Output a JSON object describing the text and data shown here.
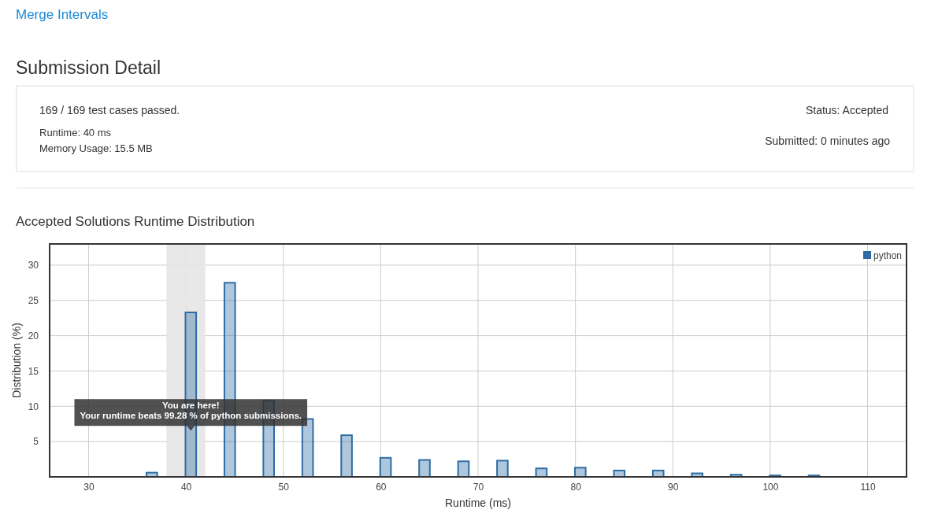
{
  "chart_data": [
    {
      "type": "other",
      "title": "Submission Detail",
      "annotations": [
        "Merge Intervals",
        "169 / 169 test cases passed.",
        "Runtime: 40 ms",
        "Memory Usage: 15.5 MB",
        "Status: Accepted",
        "Submitted: 0 minutes ago"
      ]
    },
    {
      "type": "bar",
      "title": "Accepted Solutions Runtime Distribution",
      "xlabel": "Runtime (ms)",
      "ylabel": "Distribution (%)",
      "x": [
        36.5,
        40.5,
        44.5,
        48.5,
        52.5,
        56.5,
        60.5,
        64.5,
        68.5,
        72.5,
        76.5,
        80.5,
        84.5,
        88.5,
        92.5,
        96.5,
        100.5,
        104.5
      ],
      "series": [
        {
          "name": "python",
          "color": "#2e6da4",
          "values": [
            0.6,
            23.3,
            27.5,
            10.8,
            8.2,
            5.9,
            2.7,
            2.4,
            2.2,
            2.3,
            1.2,
            1.3,
            0.9,
            0.9,
            0.5,
            0.3,
            0.2,
            0.2
          ]
        }
      ],
      "xlim": [
        26,
        114
      ],
      "xticks": [
        30,
        40,
        50,
        60,
        70,
        80,
        90,
        100,
        110
      ],
      "ylim": [
        0,
        33
      ],
      "yticks": [
        5,
        10,
        15,
        20,
        25,
        30
      ],
      "grid": true,
      "legend": "top right",
      "bands": [
        {
          "axis": "x",
          "from": 38,
          "to": 42,
          "color": "#e6e6e6"
        }
      ],
      "annotations": [
        {
          "text": "You are here!\nYour runtime beats 99.28 % of python submissions.",
          "x": 40.5,
          "y": 7
        }
      ]
    }
  ]
}
